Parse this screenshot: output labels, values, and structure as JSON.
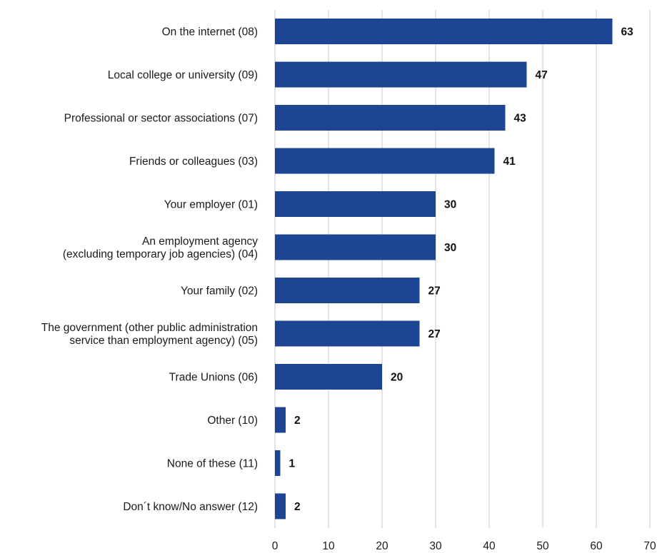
{
  "chart_data": {
    "type": "bar",
    "orientation": "horizontal",
    "categories": [
      [
        "On the internet (08)"
      ],
      [
        "Local college or university (09)"
      ],
      [
        "Professional or sector associations (07)"
      ],
      [
        "Friends or colleagues (03)"
      ],
      [
        "Your employer (01)"
      ],
      [
        "An employment agency",
        "(excluding temporary job agencies) (04)"
      ],
      [
        "Your family (02)"
      ],
      [
        "The government (other public administration",
        "service than employment agency) (05)"
      ],
      [
        "Trade Unions (06)"
      ],
      [
        "Other (10)"
      ],
      [
        "None of these (11)"
      ],
      [
        "Don´t know/No answer (12)"
      ]
    ],
    "values": [
      63,
      47,
      43,
      41,
      30,
      30,
      27,
      27,
      20,
      2,
      1,
      2
    ],
    "xlim": [
      0,
      70
    ],
    "xticks": [
      0,
      10,
      20,
      30,
      40,
      50,
      60,
      70
    ],
    "grid": "vertical",
    "bar_color": "#1c4594",
    "data_labels": true,
    "title": "",
    "xlabel": "",
    "ylabel": ""
  }
}
